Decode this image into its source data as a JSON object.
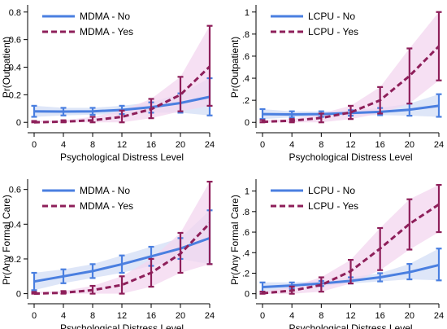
{
  "colors": {
    "no": "#4a7fe0",
    "yes": "#8e1f5a",
    "band_no": "#d3def6",
    "band_yes": "#f3d6ef"
  },
  "chart_data": [
    {
      "type": "line",
      "xlabel": "Psychological Distress Level",
      "ylabel": "Pr(Outpatient)",
      "x": [
        0,
        4,
        8,
        12,
        16,
        20,
        24
      ],
      "xlim": [
        0,
        24
      ],
      "ylim": [
        -0.04,
        0.84
      ],
      "yticks": [
        0,
        0.2,
        0.4,
        0.6,
        0.8
      ],
      "ytick_labels": [
        "0",
        "0.2",
        "0.4",
        "0.6",
        "0.8"
      ],
      "legend_position": "top-left",
      "series": [
        {
          "name": "MDMA - No",
          "style": "solid",
          "values": [
            0.08,
            0.078,
            0.08,
            0.09,
            0.11,
            0.14,
            0.185
          ],
          "lower": [
            0.04,
            0.05,
            0.055,
            0.06,
            0.07,
            0.07,
            0.05
          ],
          "upper": [
            0.12,
            0.105,
            0.105,
            0.12,
            0.145,
            0.21,
            0.32
          ]
        },
        {
          "name": "MDMA - Yes",
          "style": "dashed",
          "values": [
            0.0,
            0.005,
            0.015,
            0.04,
            0.095,
            0.2,
            0.405
          ],
          "lower": [
            0.0,
            0.0,
            0.0,
            0.0,
            0.03,
            0.08,
            0.12
          ],
          "upper": [
            0.01,
            0.015,
            0.04,
            0.085,
            0.17,
            0.33,
            0.7
          ]
        }
      ]
    },
    {
      "type": "line",
      "xlabel": "Psychological Distress Level",
      "ylabel": "Pr(Outpatient)",
      "x": [
        0,
        4,
        8,
        12,
        16,
        20,
        24
      ],
      "xlim": [
        0,
        24
      ],
      "ylim": [
        -0.05,
        1.05
      ],
      "yticks": [
        0,
        0.2,
        0.4,
        0.6,
        0.8,
        1
      ],
      "ytick_labels": [
        "0",
        ".2",
        ".4",
        ".6",
        ".8",
        "1"
      ],
      "legend_position": "top-left",
      "series": [
        {
          "name": "LCPU - No",
          "style": "solid",
          "values": [
            0.075,
            0.072,
            0.075,
            0.085,
            0.095,
            0.115,
            0.15
          ],
          "lower": [
            0.03,
            0.045,
            0.05,
            0.06,
            0.065,
            0.06,
            0.05
          ],
          "upper": [
            0.12,
            0.1,
            0.1,
            0.11,
            0.13,
            0.17,
            0.255
          ]
        },
        {
          "name": "LCPU - Yes",
          "style": "dashed",
          "values": [
            0.005,
            0.015,
            0.04,
            0.09,
            0.2,
            0.42,
            0.69
          ],
          "lower": [
            0.0,
            0.0,
            0.0,
            0.03,
            0.08,
            0.17,
            0.38
          ],
          "upper": [
            0.02,
            0.03,
            0.08,
            0.15,
            0.32,
            0.67,
            1.0
          ]
        }
      ]
    },
    {
      "type": "line",
      "xlabel": "Psychological Distress Level",
      "ylabel": "Pr(Any Formal Care)",
      "x": [
        0,
        4,
        8,
        12,
        16,
        20,
        24
      ],
      "xlim": [
        0,
        24
      ],
      "ylim": [
        -0.03,
        0.65
      ],
      "yticks": [
        0,
        0.2,
        0.4,
        0.6
      ],
      "ytick_labels": [
        "0",
        "0.2",
        "0.4",
        "0.6"
      ],
      "legend_position": "top-left",
      "series": [
        {
          "name": "MDMA - No",
          "style": "solid",
          "values": [
            0.07,
            0.1,
            0.13,
            0.17,
            0.215,
            0.26,
            0.32
          ],
          "lower": [
            0.02,
            0.06,
            0.09,
            0.12,
            0.16,
            0.2,
            0.17
          ],
          "upper": [
            0.12,
            0.14,
            0.17,
            0.22,
            0.27,
            0.32,
            0.48
          ]
        },
        {
          "name": "MDMA - Yes",
          "style": "dashed",
          "values": [
            0.0,
            0.005,
            0.02,
            0.05,
            0.12,
            0.23,
            0.405
          ],
          "lower": [
            0.0,
            0.0,
            0.0,
            0.0,
            0.04,
            0.12,
            0.17
          ],
          "upper": [
            0.01,
            0.015,
            0.045,
            0.1,
            0.2,
            0.35,
            0.645
          ]
        }
      ]
    },
    {
      "type": "line",
      "xlabel": "Psychological Distress Level",
      "ylabel": "Pr(Any Formal Care)",
      "x": [
        0,
        4,
        8,
        12,
        16,
        20,
        24
      ],
      "xlim": [
        0,
        24
      ],
      "ylim": [
        -0.05,
        1.1
      ],
      "yticks": [
        0,
        0.2,
        0.4,
        0.6,
        0.8,
        1
      ],
      "ytick_labels": [
        "0",
        ".2",
        ".4",
        ".6",
        ".8",
        "1"
      ],
      "legend_position": "top-left",
      "series": [
        {
          "name": "LCPU - No",
          "style": "solid",
          "values": [
            0.065,
            0.08,
            0.1,
            0.125,
            0.16,
            0.21,
            0.28
          ],
          "lower": [
            0.02,
            0.05,
            0.075,
            0.1,
            0.12,
            0.14,
            0.13
          ],
          "upper": [
            0.11,
            0.11,
            0.125,
            0.16,
            0.2,
            0.29,
            0.44
          ]
        },
        {
          "name": "LCPU - Yes",
          "style": "dashed",
          "values": [
            0.005,
            0.03,
            0.085,
            0.22,
            0.44,
            0.68,
            0.87
          ],
          "lower": [
            0.0,
            0.0,
            0.02,
            0.1,
            0.23,
            0.43,
            0.6
          ],
          "upper": [
            0.02,
            0.07,
            0.16,
            0.33,
            0.64,
            0.92,
            1.06
          ]
        }
      ]
    }
  ]
}
